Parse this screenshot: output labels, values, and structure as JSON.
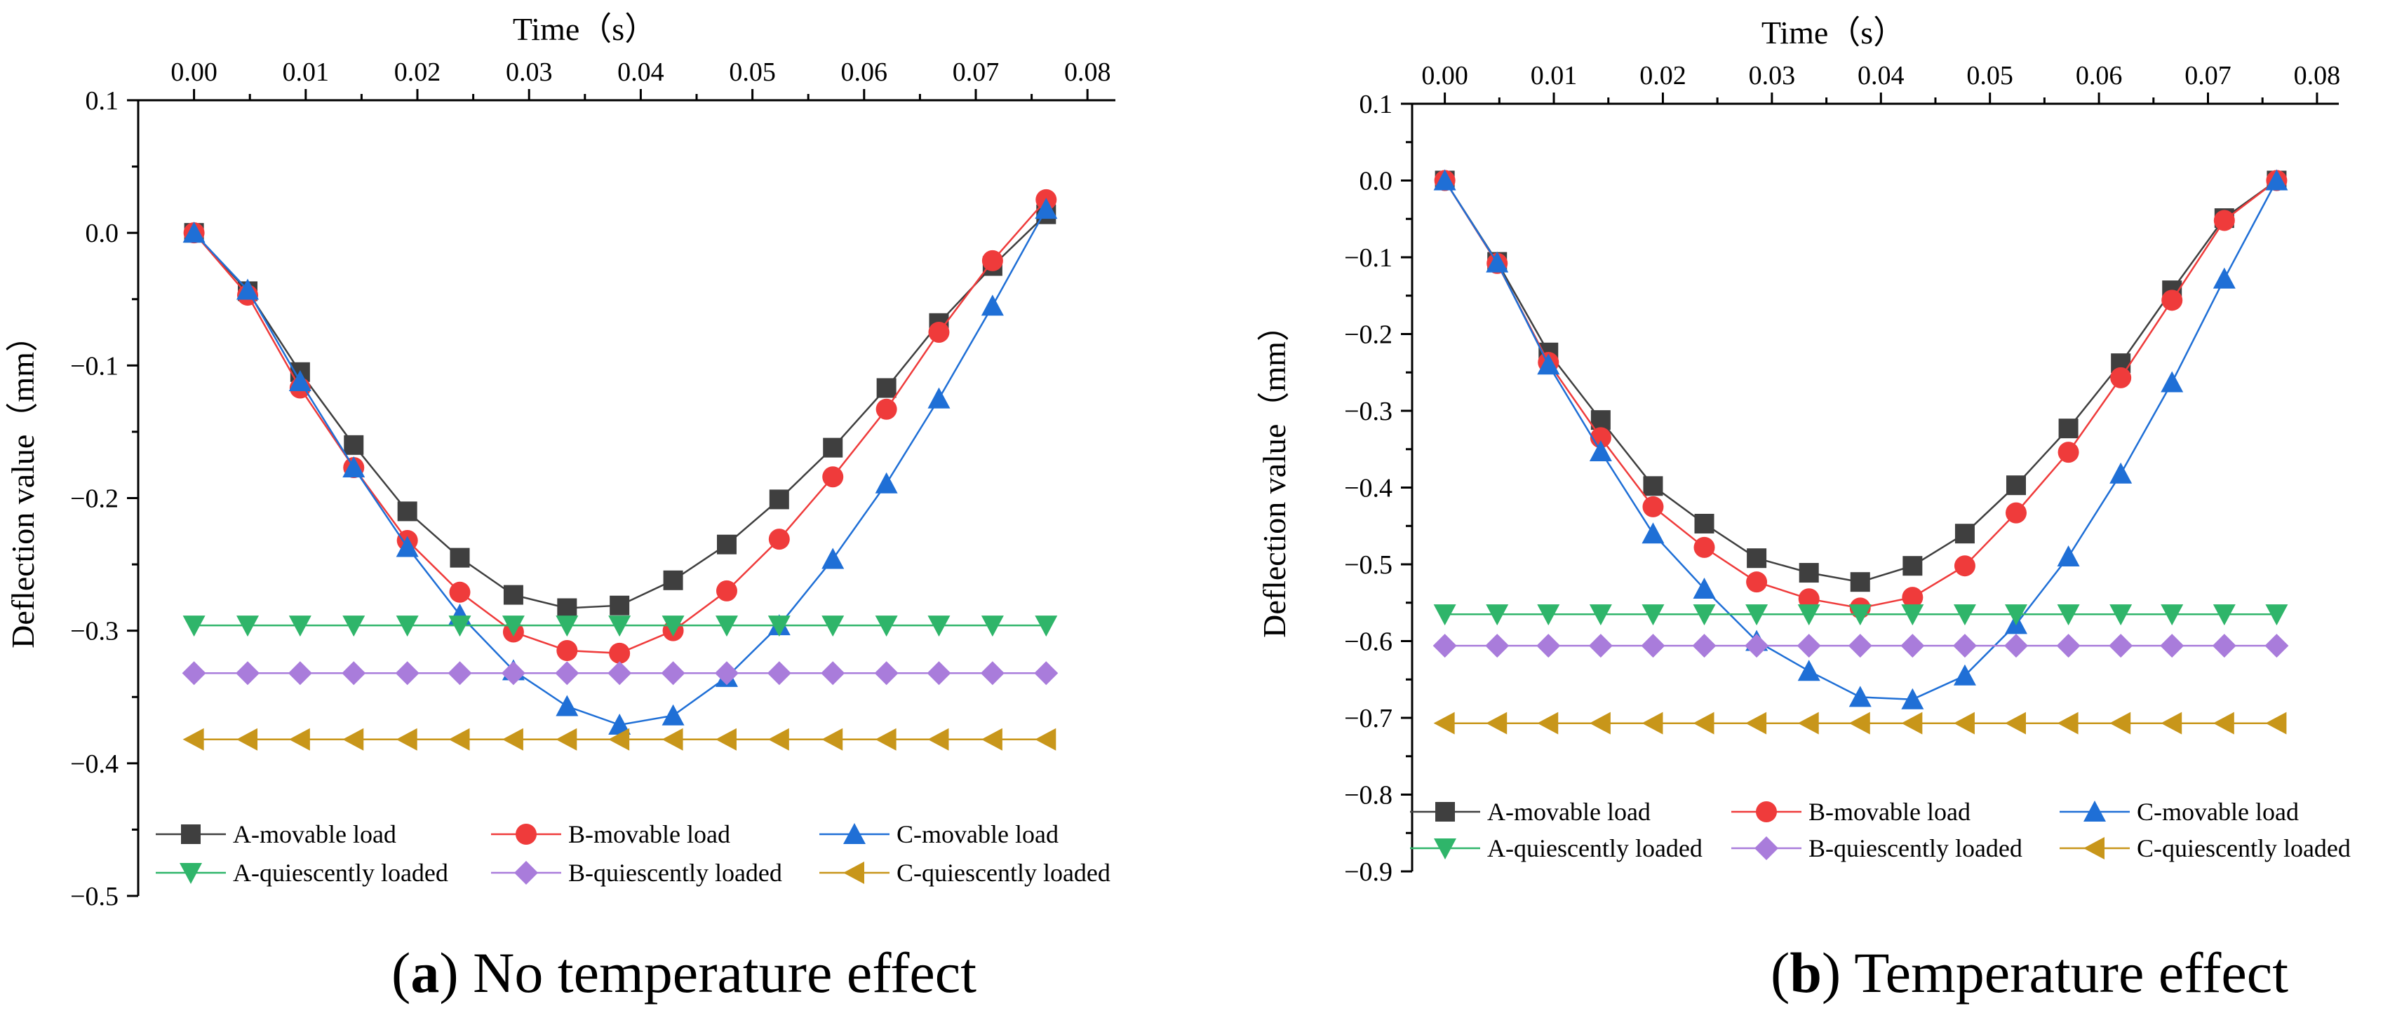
{
  "chart_data": [
    {
      "type": "line",
      "panel": "a",
      "caption": {
        "letter": "a",
        "text": "No temperature effect",
        "open": "(",
        "close": ")"
      },
      "xlabel": "Time（s）",
      "ylabel": "Deflection value（mm）",
      "xlim": [
        -0.005,
        0.0825
      ],
      "ylim": [
        -0.5,
        0.1
      ],
      "xticks": [
        "0.00",
        "0.01",
        "0.02",
        "0.03",
        "0.04",
        "0.05",
        "0.06",
        "0.07",
        "0.08"
      ],
      "yticks": [
        "0.1",
        "0.0",
        "−0.1",
        "−0.2",
        "−0.3",
        "−0.4",
        "−0.5"
      ],
      "x": [
        0.0,
        0.0048,
        0.0095,
        0.0143,
        0.0191,
        0.0238,
        0.0286,
        0.0334,
        0.0381,
        0.0429,
        0.0477,
        0.0524,
        0.0572,
        0.062,
        0.0667,
        0.0715,
        0.0763
      ],
      "series": [
        {
          "name": "A-movable load",
          "color": "#3f3f3f",
          "marker": "square",
          "values": [
            0.0,
            -0.044,
            -0.105,
            -0.16,
            -0.21,
            -0.245,
            -0.273,
            -0.283,
            -0.281,
            -0.262,
            -0.235,
            -0.201,
            -0.162,
            -0.117,
            -0.068,
            -0.025,
            0.014
          ]
        },
        {
          "name": "B-movable load",
          "color": "#ef3b3b",
          "marker": "circle",
          "values": [
            0.0,
            -0.047,
            -0.117,
            -0.177,
            -0.232,
            -0.271,
            -0.301,
            -0.315,
            -0.317,
            -0.3,
            -0.27,
            -0.231,
            -0.184,
            -0.133,
            -0.075,
            -0.021,
            0.025
          ]
        },
        {
          "name": "C-movable load",
          "color": "#1f6fd6",
          "marker": "triangle-up",
          "values": [
            0.0,
            -0.043,
            -0.112,
            -0.177,
            -0.237,
            -0.288,
            -0.33,
            -0.357,
            -0.371,
            -0.364,
            -0.335,
            -0.296,
            -0.246,
            -0.189,
            -0.125,
            -0.055,
            0.018
          ]
        },
        {
          "name": "A-quiescently loaded",
          "color": "#2fb56a",
          "marker": "triangle-down",
          "values": [
            -0.296,
            -0.296,
            -0.296,
            -0.296,
            -0.296,
            -0.296,
            -0.296,
            -0.296,
            -0.296,
            -0.296,
            -0.296,
            -0.296,
            -0.296,
            -0.296,
            -0.296,
            -0.296,
            -0.296
          ]
        },
        {
          "name": "B-quiescently loaded",
          "color": "#a97cdb",
          "marker": "diamond",
          "values": [
            -0.332,
            -0.332,
            -0.332,
            -0.332,
            -0.332,
            -0.332,
            -0.332,
            -0.332,
            -0.332,
            -0.332,
            -0.332,
            -0.332,
            -0.332,
            -0.332,
            -0.332,
            -0.332,
            -0.332
          ]
        },
        {
          "name": "C-quiescently loaded",
          "color": "#c8961a",
          "marker": "triangle-left",
          "values": [
            -0.382,
            -0.382,
            -0.382,
            -0.382,
            -0.382,
            -0.382,
            -0.382,
            -0.382,
            -0.382,
            -0.382,
            -0.382,
            -0.382,
            -0.382,
            -0.382,
            -0.382,
            -0.382,
            -0.382
          ]
        }
      ]
    },
    {
      "type": "line",
      "panel": "b",
      "caption": {
        "letter": "b",
        "text": "Temperature effect",
        "open": "(",
        "close": ")"
      },
      "xlabel": "Time（s）",
      "ylabel": "Deflection value（mm）",
      "xlim": [
        -0.003,
        0.082
      ],
      "ylim": [
        -0.9,
        0.1
      ],
      "xticks": [
        "0.00",
        "0.01",
        "0.02",
        "0.03",
        "0.04",
        "0.05",
        "0.06",
        "0.07",
        "0.08"
      ],
      "yticks": [
        "0.1",
        "0.0",
        "−0.1",
        "−0.2",
        "−0.3",
        "−0.4",
        "−0.5",
        "−0.6",
        "−0.7",
        "−0.8",
        "−0.9"
      ],
      "x": [
        0.0,
        0.0048,
        0.0095,
        0.0143,
        0.0191,
        0.0238,
        0.0286,
        0.0334,
        0.0381,
        0.0429,
        0.0477,
        0.0524,
        0.0572,
        0.062,
        0.0667,
        0.0715,
        0.0763
      ],
      "series": [
        {
          "name": "A-movable load",
          "color": "#3f3f3f",
          "marker": "square",
          "values": [
            0.0,
            -0.106,
            -0.224,
            -0.312,
            -0.398,
            -0.447,
            -0.492,
            -0.511,
            -0.523,
            -0.502,
            -0.46,
            -0.397,
            -0.323,
            -0.238,
            -0.143,
            -0.049,
            0.0
          ]
        },
        {
          "name": "B-movable load",
          "color": "#ef3b3b",
          "marker": "circle",
          "values": [
            0.0,
            -0.108,
            -0.237,
            -0.335,
            -0.425,
            -0.478,
            -0.523,
            -0.545,
            -0.557,
            -0.543,
            -0.502,
            -0.433,
            -0.354,
            -0.257,
            -0.156,
            -0.052,
            0.0
          ]
        },
        {
          "name": "C-movable load",
          "color": "#1f6fd6",
          "marker": "triangle-up",
          "values": [
            0.0,
            -0.107,
            -0.24,
            -0.353,
            -0.46,
            -0.532,
            -0.6,
            -0.639,
            -0.673,
            -0.676,
            -0.645,
            -0.578,
            -0.49,
            -0.382,
            -0.263,
            -0.128,
            0.0
          ]
        },
        {
          "name": "A-quiescently loaded",
          "color": "#2fb56a",
          "marker": "triangle-down",
          "values": [
            -0.565,
            -0.565,
            -0.565,
            -0.565,
            -0.565,
            -0.565,
            -0.565,
            -0.565,
            -0.565,
            -0.565,
            -0.565,
            -0.565,
            -0.565,
            -0.565,
            -0.565,
            -0.565,
            -0.565
          ]
        },
        {
          "name": "B-quiescently loaded",
          "color": "#a97cdb",
          "marker": "diamond",
          "values": [
            -0.606,
            -0.606,
            -0.606,
            -0.606,
            -0.606,
            -0.606,
            -0.606,
            -0.606,
            -0.606,
            -0.606,
            -0.606,
            -0.606,
            -0.606,
            -0.606,
            -0.606,
            -0.606,
            -0.606
          ]
        },
        {
          "name": "C-quiescently loaded",
          "color": "#c8961a",
          "marker": "triangle-left",
          "values": [
            -0.707,
            -0.707,
            -0.707,
            -0.707,
            -0.707,
            -0.707,
            -0.707,
            -0.707,
            -0.707,
            -0.707,
            -0.707,
            -0.707,
            -0.707,
            -0.707,
            -0.707,
            -0.707,
            -0.707
          ]
        }
      ]
    }
  ]
}
